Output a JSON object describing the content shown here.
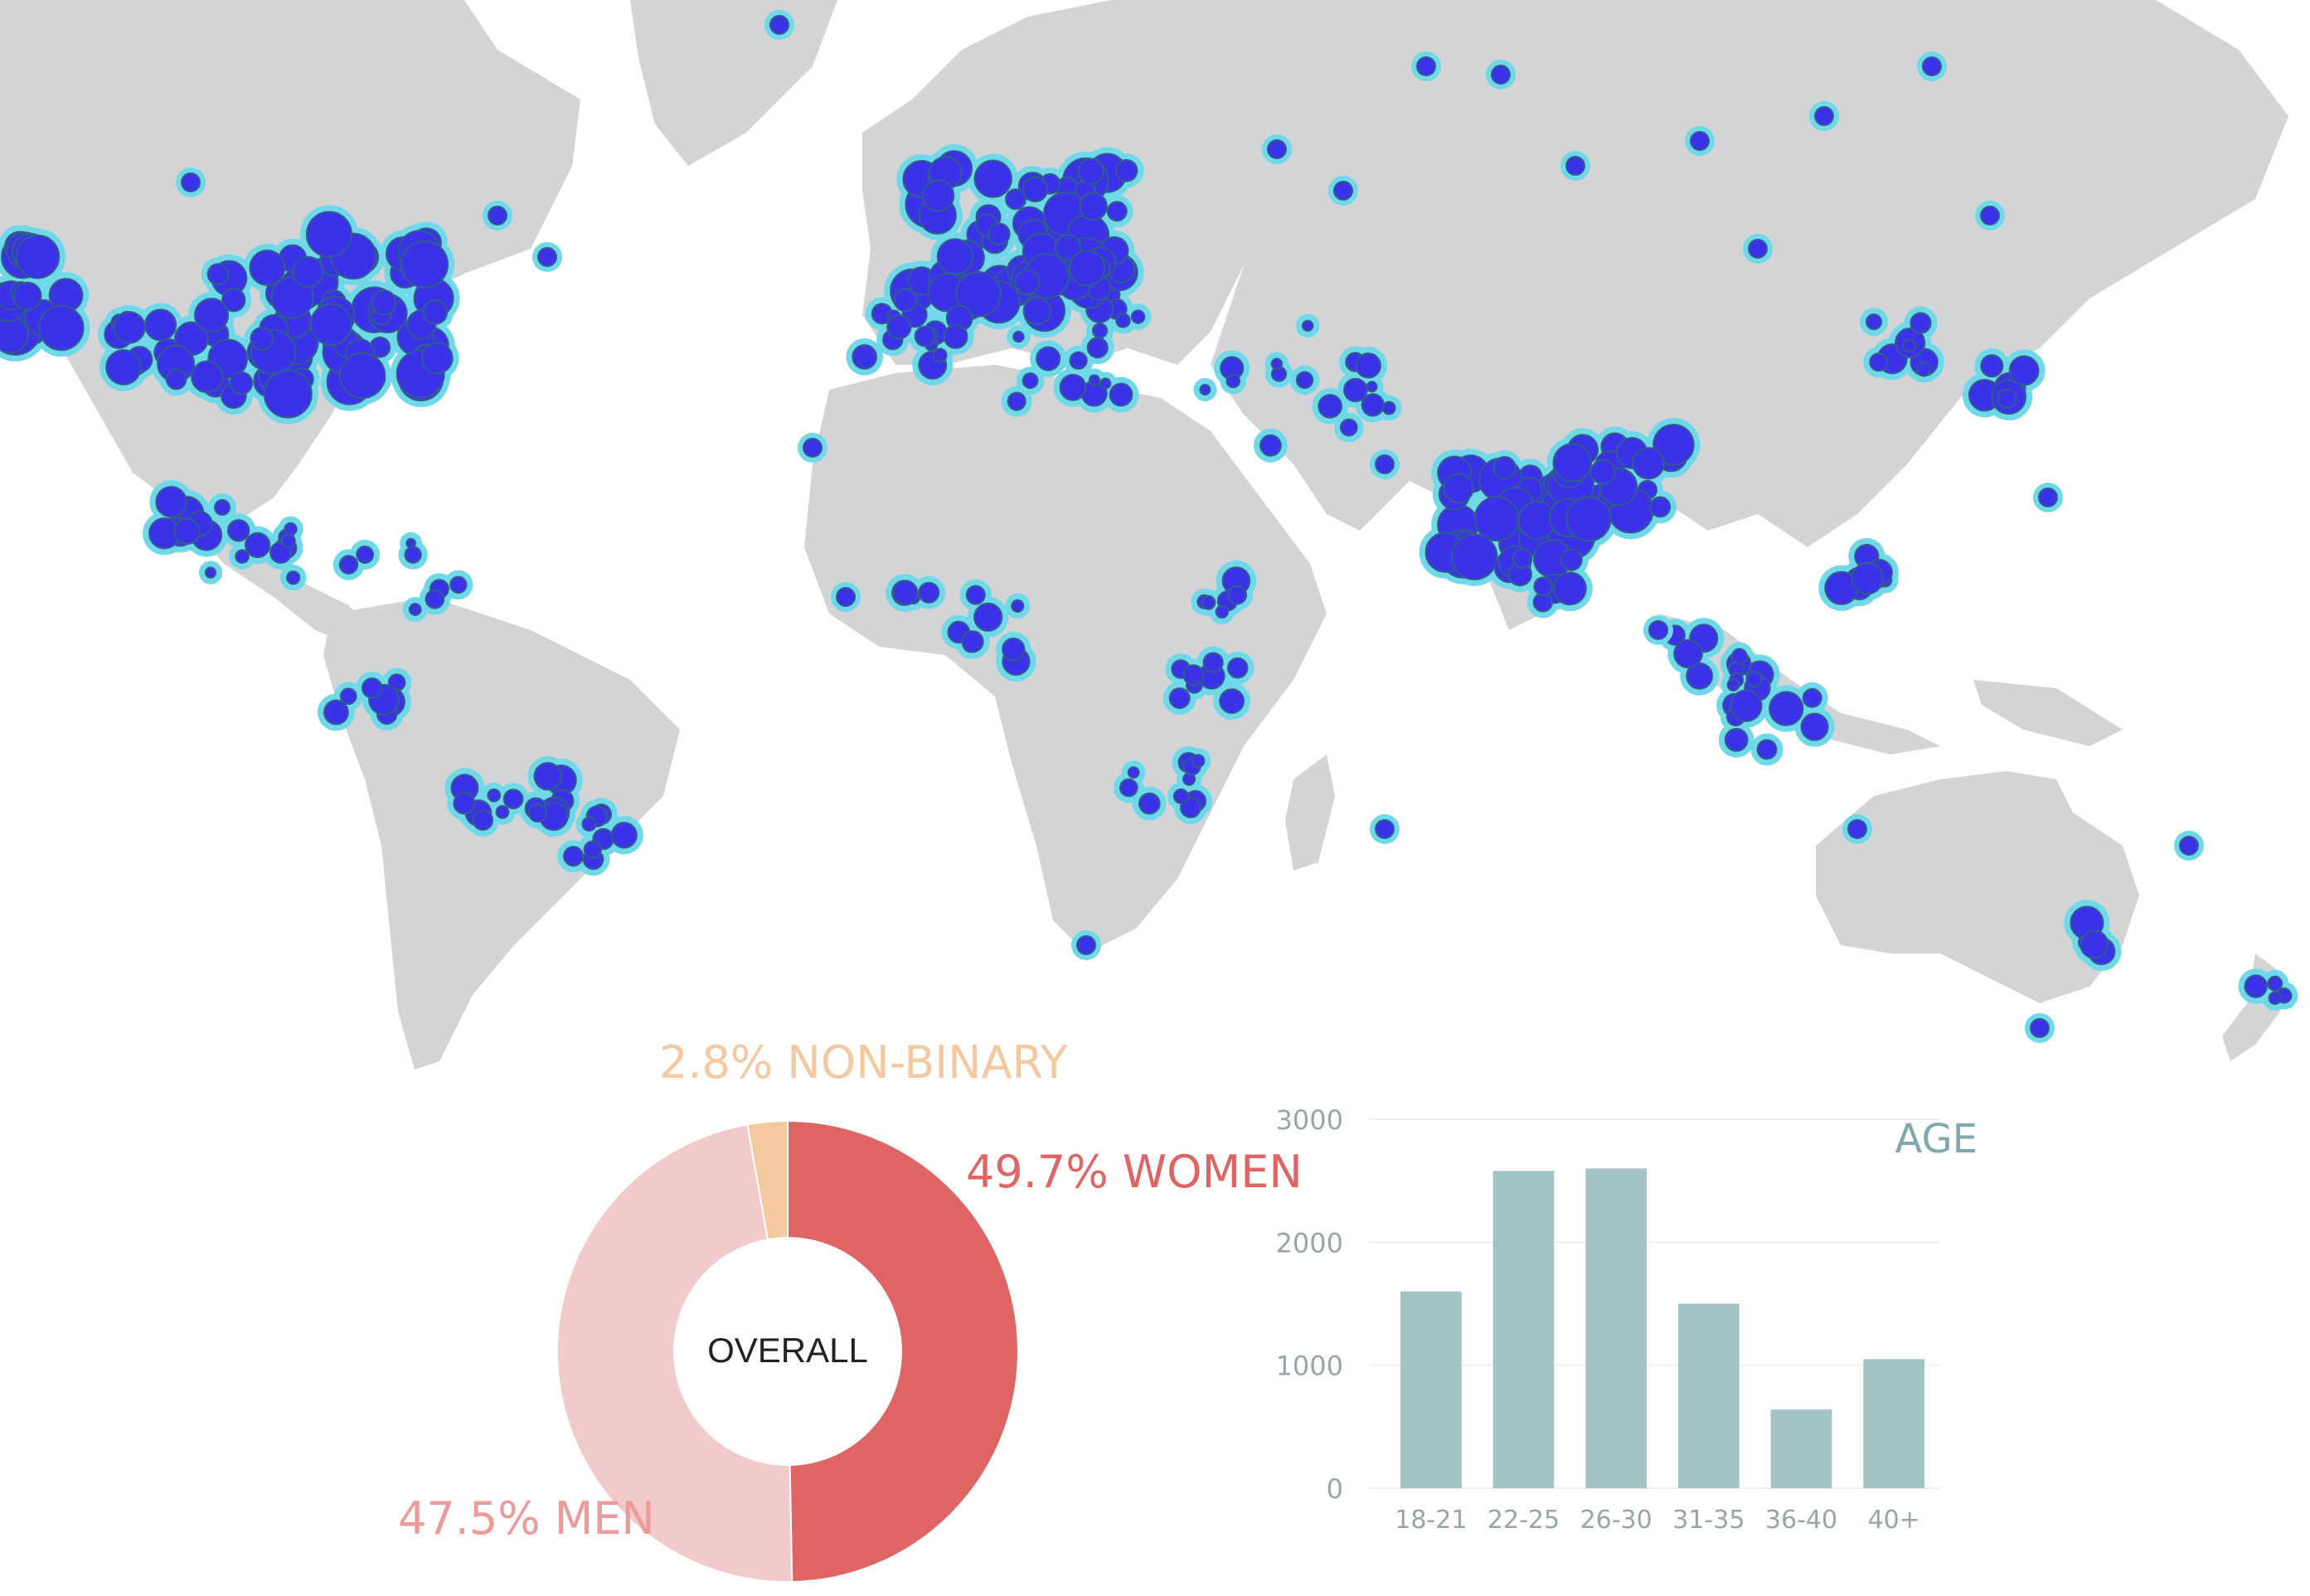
{
  "colors": {
    "land": "#d2d4d6",
    "ocean": "#ffffff",
    "hotspot_core": "#3a31e8",
    "hotspot_glow": "#6fd9ea",
    "hotspot_ring": "#2f5f8a",
    "women": "#df6464",
    "men": "#f3caca",
    "nonbinary": "#f5c9a0",
    "bars": "#a3c3c7",
    "axis_text": "#9aa5a7",
    "age_title": "#7fa9ad"
  },
  "map": {
    "description_icon": "world-map-icon"
  },
  "chart_data": [
    {
      "type": "pie",
      "center_label": "OVERALL",
      "slices": [
        {
          "label": "49.7% WOMEN",
          "value": 49.7,
          "color": "#df6464"
        },
        {
          "label": "47.5% MEN",
          "value": 47.5,
          "color": "#f3caca"
        },
        {
          "label": "2.8% NON-BINARY",
          "value": 2.8,
          "color": "#f5c9a0"
        }
      ]
    },
    {
      "type": "bar",
      "title": "AGE",
      "categories": [
        "18-21",
        "22-25",
        "26-30",
        "31-35",
        "36-40",
        "40+"
      ],
      "values": [
        1600,
        2580,
        2600,
        1500,
        640,
        1050
      ],
      "yticks": [
        "0",
        "1000",
        "2000",
        "3000"
      ],
      "ylim": [
        0,
        3000
      ],
      "grid": true
    }
  ]
}
